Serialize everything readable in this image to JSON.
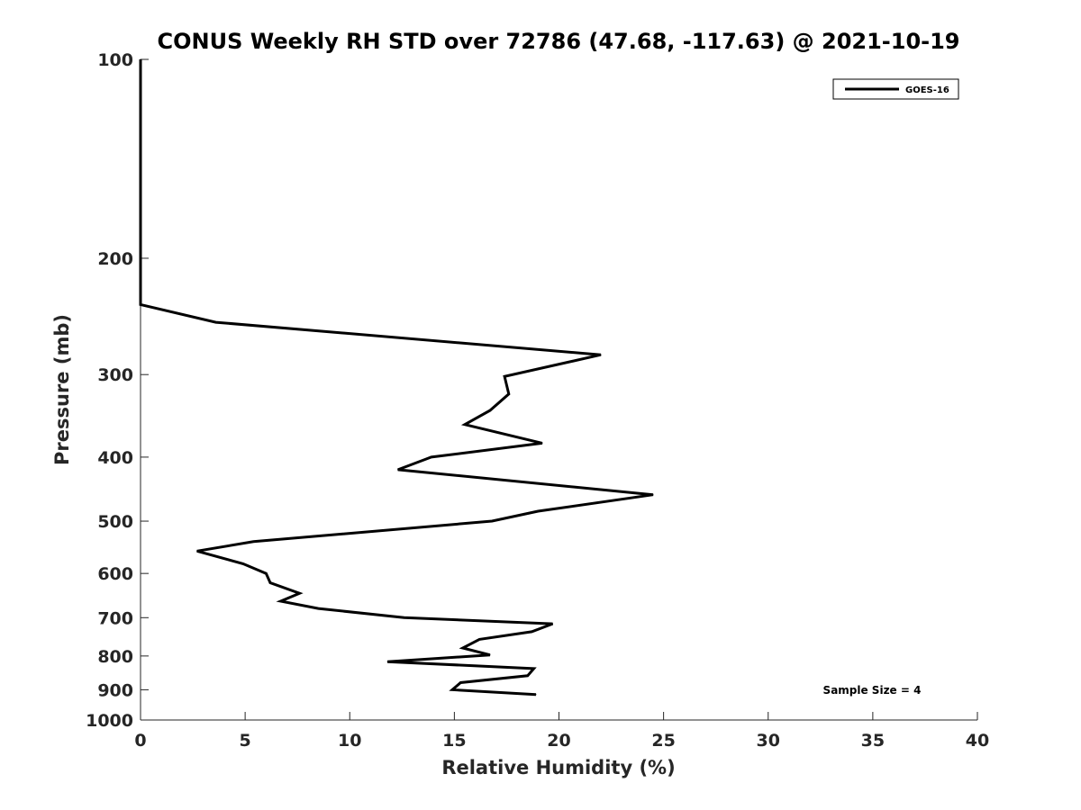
{
  "chart_data": {
    "type": "line",
    "title": "CONUS Weekly RH STD over 72786 (47.68, -117.63) @ 2021-10-19",
    "xlabel": "Relative Humidity (%)",
    "ylabel": "Pressure (mb)",
    "xlim": [
      0,
      40
    ],
    "ylim": [
      100,
      1000
    ],
    "yscale": "log",
    "y_reversed": true,
    "grid": false,
    "xticks": [
      0,
      5,
      10,
      15,
      20,
      25,
      30,
      35,
      40
    ],
    "xtick_labels": [
      "0",
      "5",
      "10",
      "15",
      "20",
      "25",
      "30",
      "35",
      "40"
    ],
    "yticks": [
      100,
      200,
      300,
      400,
      500,
      600,
      700,
      800,
      900,
      1000
    ],
    "ytick_labels": [
      "100",
      "200",
      "300",
      "400",
      "500",
      "600",
      "700",
      "800",
      "900",
      "1000"
    ],
    "legend_position": "top-right",
    "annotation": "Sample Size = 4",
    "series": [
      {
        "name": "GOES-16",
        "color": "#000000",
        "points": [
          {
            "x": 0,
            "y": 100
          },
          {
            "x": 0,
            "y": 150
          },
          {
            "x": 0,
            "y": 200
          },
          {
            "x": 0,
            "y": 235
          },
          {
            "x": 3.6,
            "y": 250
          },
          {
            "x": 22.0,
            "y": 280
          },
          {
            "x": 17.4,
            "y": 302
          },
          {
            "x": 17.6,
            "y": 321
          },
          {
            "x": 16.7,
            "y": 340
          },
          {
            "x": 15.5,
            "y": 357
          },
          {
            "x": 19.2,
            "y": 381
          },
          {
            "x": 13.9,
            "y": 400
          },
          {
            "x": 12.3,
            "y": 418
          },
          {
            "x": 24.5,
            "y": 456
          },
          {
            "x": 19.0,
            "y": 483
          },
          {
            "x": 16.8,
            "y": 500
          },
          {
            "x": 5.4,
            "y": 537
          },
          {
            "x": 2.7,
            "y": 555
          },
          {
            "x": 4.9,
            "y": 580
          },
          {
            "x": 6.0,
            "y": 600
          },
          {
            "x": 6.2,
            "y": 620
          },
          {
            "x": 7.6,
            "y": 643
          },
          {
            "x": 6.7,
            "y": 661
          },
          {
            "x": 8.5,
            "y": 678
          },
          {
            "x": 12.6,
            "y": 700
          },
          {
            "x": 19.7,
            "y": 715
          },
          {
            "x": 18.7,
            "y": 735
          },
          {
            "x": 16.2,
            "y": 755
          },
          {
            "x": 15.4,
            "y": 778
          },
          {
            "x": 16.7,
            "y": 797
          },
          {
            "x": 11.8,
            "y": 816
          },
          {
            "x": 18.8,
            "y": 836
          },
          {
            "x": 18.5,
            "y": 857
          },
          {
            "x": 15.3,
            "y": 878
          },
          {
            "x": 14.9,
            "y": 900
          },
          {
            "x": 18.9,
            "y": 915
          }
        ]
      }
    ]
  }
}
